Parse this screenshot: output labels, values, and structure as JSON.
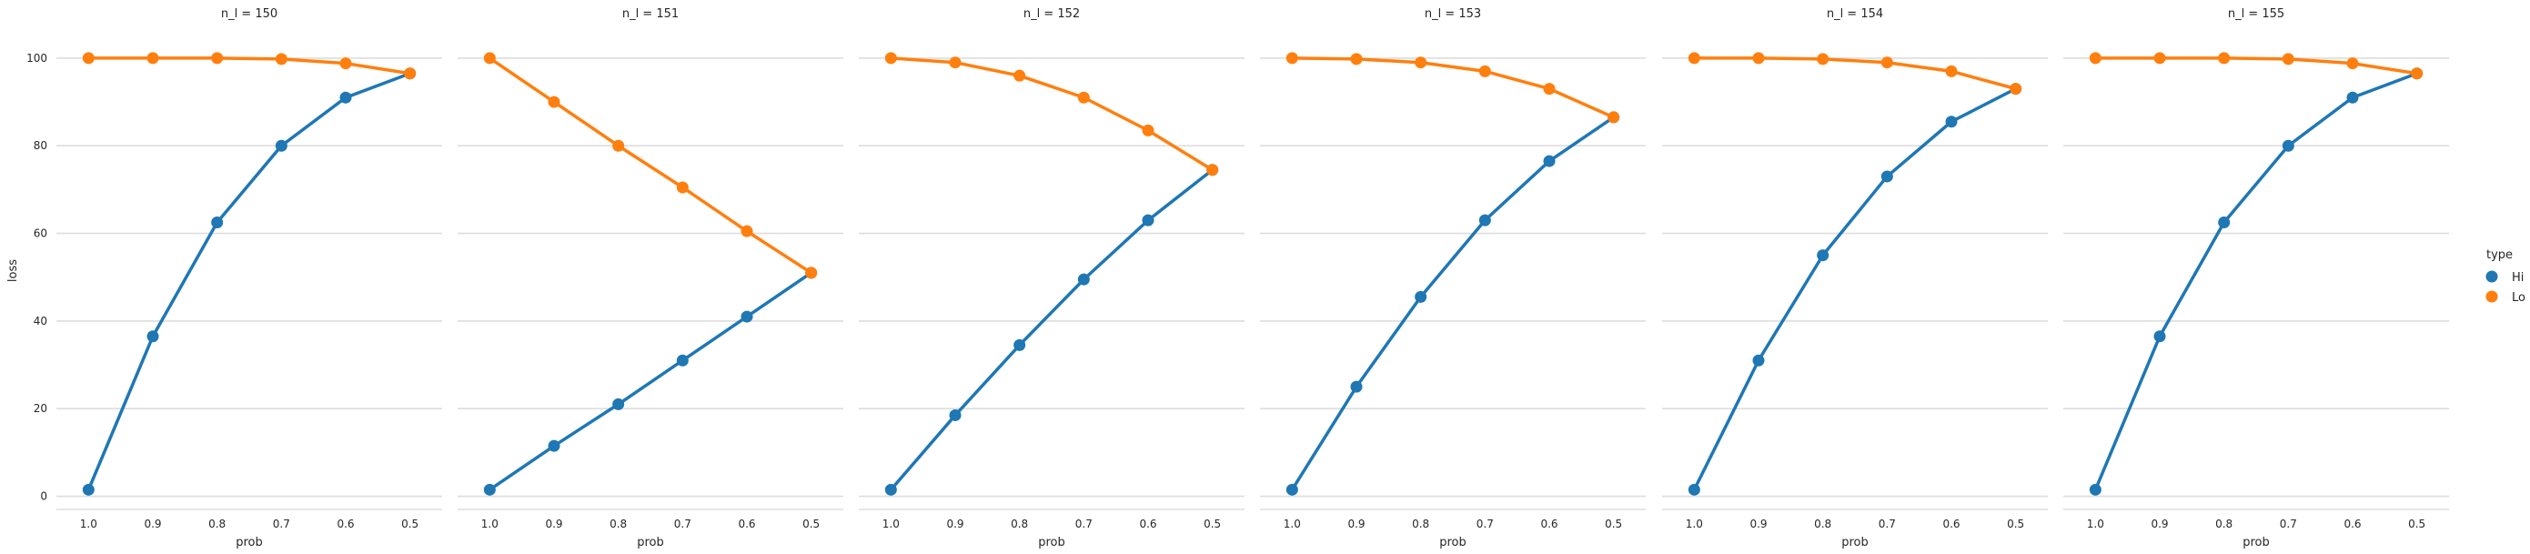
{
  "chart_data": {
    "type": "line",
    "grid": "horizontal",
    "legend": {
      "title": "type",
      "placement": "right",
      "entries": [
        {
          "label": "Hi",
          "color": "#1f77b4"
        },
        {
          "label": "Lo",
          "color": "#ff7f0e"
        }
      ]
    },
    "xlabel": "prob",
    "ylabel": "loss",
    "categories": [
      "1.0",
      "0.9",
      "0.8",
      "0.7",
      "0.6",
      "0.5"
    ],
    "ylim": [
      -3,
      106
    ],
    "yticks": [
      0,
      20,
      40,
      60,
      80,
      100
    ],
    "yticks_labels": [
      "0",
      "20",
      "40",
      "60",
      "80",
      "100"
    ],
    "colors": {
      "Hi": "#1f77b4",
      "Lo": "#ff7f0e"
    },
    "panels": [
      {
        "title": "n_l = 150",
        "series": [
          {
            "name": "Hi",
            "values": [
              1.5,
              36.5,
              62.5,
              80.0,
              91.0,
              96.5
            ]
          },
          {
            "name": "Lo",
            "values": [
              100.0,
              100.0,
              100.0,
              99.8,
              98.8,
              96.5
            ]
          }
        ]
      },
      {
        "title": "n_l = 151",
        "series": [
          {
            "name": "Hi",
            "values": [
              1.5,
              11.5,
              21.0,
              31.0,
              41.0,
              51.0
            ]
          },
          {
            "name": "Lo",
            "values": [
              100.0,
              90.0,
              80.0,
              70.5,
              60.5,
              51.0
            ]
          }
        ]
      },
      {
        "title": "n_l = 152",
        "series": [
          {
            "name": "Hi",
            "values": [
              1.5,
              18.5,
              34.5,
              49.5,
              63.0,
              74.5
            ]
          },
          {
            "name": "Lo",
            "values": [
              100.0,
              99.0,
              96.0,
              91.0,
              83.5,
              74.5
            ]
          }
        ]
      },
      {
        "title": "n_l = 153",
        "series": [
          {
            "name": "Hi",
            "values": [
              1.5,
              25.0,
              45.5,
              63.0,
              76.5,
              86.5
            ]
          },
          {
            "name": "Lo",
            "values": [
              100.0,
              99.8,
              99.0,
              97.0,
              93.0,
              86.5
            ]
          }
        ]
      },
      {
        "title": "n_l = 154",
        "series": [
          {
            "name": "Hi",
            "values": [
              1.5,
              31.0,
              55.0,
              73.0,
              85.5,
              93.0
            ]
          },
          {
            "name": "Lo",
            "values": [
              100.0,
              100.0,
              99.8,
              99.0,
              97.0,
              93.0
            ]
          }
        ]
      },
      {
        "title": "n_l = 155",
        "series": [
          {
            "name": "Hi",
            "values": [
              1.5,
              36.5,
              62.5,
              80.0,
              91.0,
              96.5
            ]
          },
          {
            "name": "Lo",
            "values": [
              100.0,
              100.0,
              100.0,
              99.8,
              98.8,
              96.5
            ]
          }
        ]
      }
    ]
  }
}
